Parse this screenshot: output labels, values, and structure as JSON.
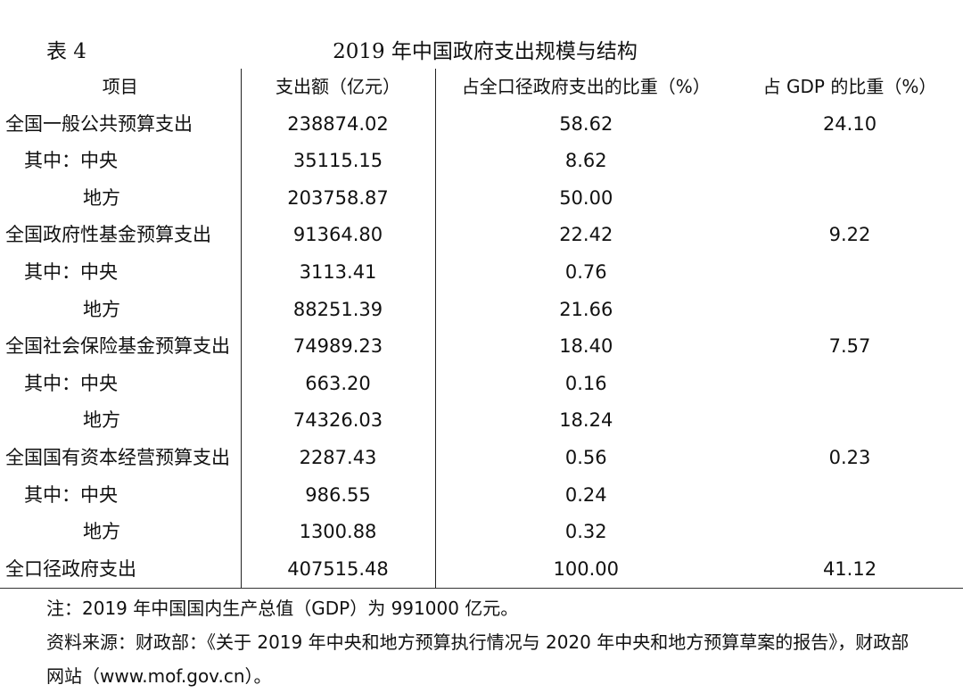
{
  "table_label": "表 4",
  "title": "2019 年中国政府支出规模与结构",
  "columns": [
    "项目",
    "支出额（亿元）",
    "占全口径政府支出的比重（%）",
    "占 GDP 的比重（%）"
  ],
  "rows": [
    {
      "item": "全国一般公共预算支出",
      "amount": "238874.02",
      "share": "58.62",
      "gdp": "24.10"
    },
    {
      "item": "其中：中央",
      "amount": "35115.15",
      "share": "8.62",
      "gdp": ""
    },
    {
      "item": "地方",
      "amount": "203758.87",
      "share": "50.00",
      "gdp": ""
    },
    {
      "item": "全国政府性基金预算支出",
      "amount": "91364.80",
      "share": "22.42",
      "gdp": "9.22"
    },
    {
      "item": "其中：中央",
      "amount": "3113.41",
      "share": "0.76",
      "gdp": ""
    },
    {
      "item": "地方",
      "amount": "88251.39",
      "share": "21.66",
      "gdp": ""
    },
    {
      "item": "全国社会保险基金预算支出",
      "amount": "74989.23",
      "share": "18.40",
      "gdp": "7.57"
    },
    {
      "item": "其中：中央",
      "amount": "663.20",
      "share": "0.16",
      "gdp": ""
    },
    {
      "item": "地方",
      "amount": "74326.03",
      "share": "18.24",
      "gdp": ""
    },
    {
      "item": "全国国有资本经营预算支出",
      "amount": "2287.43",
      "share": "0.56",
      "gdp": "0.23"
    },
    {
      "item": "其中：中央",
      "amount": "986.55",
      "share": "0.24",
      "gdp": ""
    },
    {
      "item": "地方",
      "amount": "1300.88",
      "share": "0.32",
      "gdp": ""
    },
    {
      "item": "全口径政府支出",
      "amount": "407515.48",
      "share": "100.00",
      "gdp": "41.12"
    }
  ],
  "notes": {
    "note": "注：2019 年中国国内生产总值（GDP）为 991000 亿元。",
    "source_line1": "资料来源：财政部：《关于 2019 年中央和地方预算执行情况与 2020 年中央和地方预算草案的报告》，财政部",
    "source_line2": "网站（www.mof.gov.cn）。"
  }
}
